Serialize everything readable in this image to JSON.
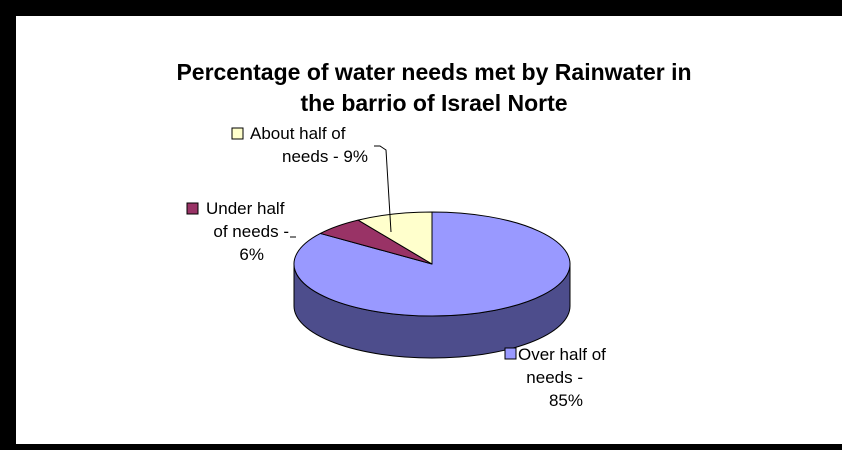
{
  "chart_data": {
    "type": "pie",
    "title_lines": [
      "Percentage of water needs met by Rainwater in",
      "the barrio of Israel Norte"
    ],
    "categories": [
      "Over half of needs",
      "Under half of needs",
      "About half of needs"
    ],
    "values": [
      85,
      6,
      9
    ],
    "unit": "%",
    "colors": [
      "#9999FF",
      "#993366",
      "#FFFFCC"
    ],
    "side_colors": [
      "#4D4D8C",
      "#4D1A33",
      "#8C8C66"
    ],
    "label_lines": [
      [
        "Over half of",
        "needs -",
        "85%"
      ],
      [
        "Under half",
        "of needs -",
        "6%"
      ],
      [
        "About half of",
        "needs - 9%"
      ]
    ],
    "style": "3d-pie"
  }
}
